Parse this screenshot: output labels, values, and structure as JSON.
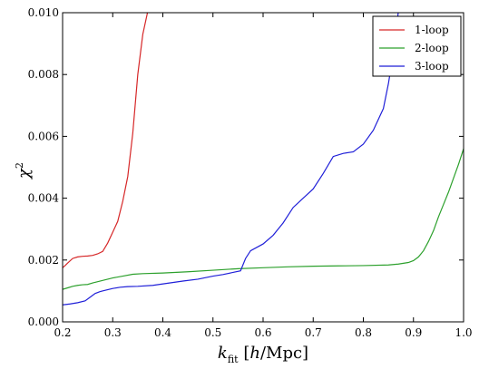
{
  "chart_data": {
    "type": "line",
    "title": "",
    "xlabel": "k_fit [h/Mpc]",
    "ylabel": "χ²",
    "xlim": [
      0.2,
      1.0
    ],
    "ylim": [
      0.0,
      0.01
    ],
    "xticks": [
      "0.2",
      "0.3",
      "0.4",
      "0.5",
      "0.6",
      "0.7",
      "0.8",
      "0.9",
      "1.0"
    ],
    "yticks": [
      "0.000",
      "0.002",
      "0.004",
      "0.006",
      "0.008",
      "0.010"
    ],
    "grid": false,
    "legend_position": "top-right",
    "series": [
      {
        "name": "1-loop",
        "color": "#d62728",
        "x": [
          0.2,
          0.205,
          0.21,
          0.22,
          0.23,
          0.24,
          0.25,
          0.26,
          0.27,
          0.28,
          0.29,
          0.3,
          0.31,
          0.32,
          0.33,
          0.34,
          0.35,
          0.36,
          0.37
        ],
        "y": [
          0.00175,
          0.00182,
          0.0019,
          0.00205,
          0.0021,
          0.00212,
          0.00213,
          0.00215,
          0.0022,
          0.00228,
          0.00255,
          0.0029,
          0.00325,
          0.0039,
          0.0047,
          0.0061,
          0.008,
          0.0093,
          0.01005
        ]
      },
      {
        "name": "2-loop",
        "color": "#2ca02c",
        "x": [
          0.2,
          0.21,
          0.22,
          0.23,
          0.24,
          0.25,
          0.26,
          0.27,
          0.28,
          0.29,
          0.3,
          0.32,
          0.34,
          0.36,
          0.4,
          0.45,
          0.5,
          0.55,
          0.6,
          0.65,
          0.7,
          0.75,
          0.8,
          0.85,
          0.87,
          0.89,
          0.9,
          0.91,
          0.92,
          0.93,
          0.94,
          0.95,
          0.96,
          0.97,
          0.98,
          0.99,
          1.0
        ],
        "y": [
          0.00105,
          0.0011,
          0.00115,
          0.00118,
          0.0012,
          0.00121,
          0.00126,
          0.0013,
          0.00134,
          0.00138,
          0.00142,
          0.00148,
          0.00154,
          0.00156,
          0.00158,
          0.00162,
          0.00167,
          0.00172,
          0.00175,
          0.00178,
          0.0018,
          0.00181,
          0.00182,
          0.00184,
          0.00187,
          0.00192,
          0.00198,
          0.0021,
          0.0023,
          0.0026,
          0.00295,
          0.0034,
          0.0038,
          0.0042,
          0.00465,
          0.0051,
          0.0056
        ]
      },
      {
        "name": "3-loop",
        "color": "#1f1fd8",
        "x": [
          0.2,
          0.215,
          0.23,
          0.245,
          0.255,
          0.265,
          0.275,
          0.285,
          0.3,
          0.315,
          0.33,
          0.35,
          0.38,
          0.41,
          0.44,
          0.47,
          0.5,
          0.52,
          0.54,
          0.555,
          0.565,
          0.575,
          0.6,
          0.62,
          0.64,
          0.66,
          0.68,
          0.7,
          0.72,
          0.74,
          0.76,
          0.78,
          0.8,
          0.82,
          0.84,
          0.85,
          0.86,
          0.87
        ],
        "y": [
          0.00055,
          0.00058,
          0.00062,
          0.00068,
          0.0008,
          0.00092,
          0.00098,
          0.00102,
          0.00108,
          0.00112,
          0.00114,
          0.00115,
          0.00118,
          0.00125,
          0.00132,
          0.00138,
          0.00148,
          0.00153,
          0.0016,
          0.00165,
          0.00205,
          0.0023,
          0.00252,
          0.0028,
          0.0032,
          0.0037,
          0.004,
          0.0043,
          0.0048,
          0.00535,
          0.00545,
          0.0055,
          0.00575,
          0.0062,
          0.0069,
          0.0077,
          0.0087,
          0.01005
        ]
      }
    ]
  }
}
